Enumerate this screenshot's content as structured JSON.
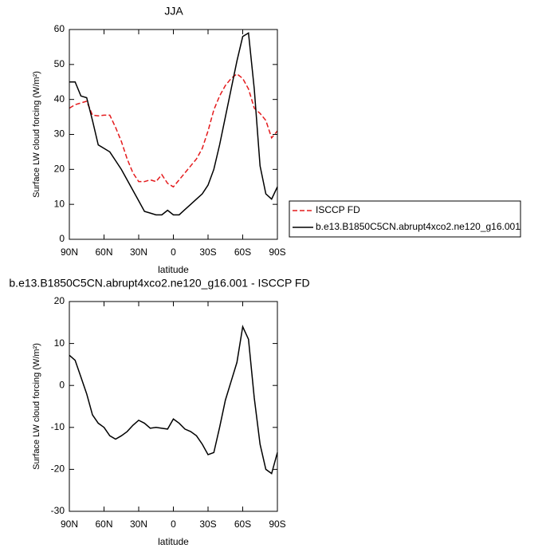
{
  "chart_data": [
    {
      "type": "line",
      "title": "JJA",
      "xlabel": "latitude",
      "ylabel": "Surface LW cloud forcing (W/m²)",
      "x": [
        90,
        85,
        80,
        75,
        70,
        65,
        60,
        55,
        50,
        45,
        40,
        35,
        30,
        25,
        20,
        15,
        10,
        5,
        0,
        -5,
        -10,
        -15,
        -20,
        -25,
        -30,
        -35,
        -40,
        -45,
        -50,
        -55,
        -60,
        -65,
        -70,
        -75,
        -80,
        -85,
        -90
      ],
      "series": [
        {
          "name": "ISCCP FD",
          "color": "#e41a1c",
          "dash": "dashed",
          "values": [
            37.5,
            38.5,
            39,
            39.5,
            35.5,
            35.3,
            35.5,
            35.5,
            32,
            28,
            23,
            19,
            16.5,
            16.5,
            17,
            16.5,
            18.5,
            16,
            15,
            17,
            19,
            21,
            23,
            26,
            31,
            37,
            41,
            44,
            46,
            47.3,
            46,
            43,
            37.5,
            36,
            34,
            29,
            31
          ]
        },
        {
          "name": "b.e13.B1850C5CN.abrupt4xco2.ne120_g16.001",
          "color": "#000000",
          "dash": "solid",
          "values": [
            45,
            45,
            41,
            40.5,
            34,
            27,
            26,
            25,
            22.5,
            20,
            17,
            14,
            11,
            8,
            7.5,
            7,
            7,
            8.3,
            7,
            7,
            8.5,
            10,
            11.5,
            13,
            15.5,
            20,
            27,
            35,
            43,
            51,
            58,
            59,
            43,
            21,
            13,
            11.5,
            15
          ]
        }
      ],
      "xlim": [
        90,
        -90
      ],
      "xticks": [
        {
          "value": 90,
          "label": "90N"
        },
        {
          "value": 60,
          "label": "60N"
        },
        {
          "value": 30,
          "label": "30N"
        },
        0,
        {
          "value": -30,
          "label": "30S"
        },
        {
          "value": -60,
          "label": "60S"
        },
        {
          "value": -90,
          "label": "90S"
        }
      ],
      "ylim": [
        0,
        60
      ],
      "yticks": [
        0,
        10,
        20,
        30,
        40,
        50,
        60
      ],
      "legend": "right"
    },
    {
      "type": "line",
      "title": "b.e13.B1850C5CN.abrupt4xco2.ne120_g16.001 - ISCCP FD",
      "xlabel": "latitude",
      "ylabel": "Surface LW cloud forcing (W/m²)",
      "x": [
        90,
        85,
        80,
        75,
        70,
        65,
        60,
        55,
        50,
        45,
        40,
        35,
        30,
        25,
        20,
        15,
        10,
        5,
        0,
        -5,
        -10,
        -15,
        -20,
        -25,
        -30,
        -35,
        -40,
        -45,
        -50,
        -55,
        -60,
        -65,
        -70,
        -75,
        -80,
        -85,
        -90
      ],
      "series": [
        {
          "color": "#000000",
          "dash": "solid",
          "values": [
            7.2,
            6,
            2,
            -2,
            -7,
            -9,
            -10,
            -12,
            -12.8,
            -12,
            -11,
            -9.5,
            -8.3,
            -9,
            -10.2,
            -10,
            -10.2,
            -10.4,
            -8,
            -9,
            -10.4,
            -11,
            -12,
            -14,
            -16.5,
            -16,
            -10,
            -3.5,
            1,
            5.5,
            14,
            11,
            -3,
            -14,
            -20,
            -21,
            -16
          ]
        }
      ],
      "xlim": [
        90,
        -90
      ],
      "xticks": [
        {
          "value": 90,
          "label": "90N"
        },
        {
          "value": 60,
          "label": "60N"
        },
        {
          "value": 30,
          "label": "30N"
        },
        0,
        {
          "value": -30,
          "label": "30S"
        },
        {
          "value": -60,
          "label": "60S"
        },
        {
          "value": -90,
          "label": "90S"
        }
      ],
      "ylim": [
        -30,
        20
      ],
      "yticks": [
        -30,
        -20,
        -10,
        0,
        10,
        20
      ]
    }
  ]
}
